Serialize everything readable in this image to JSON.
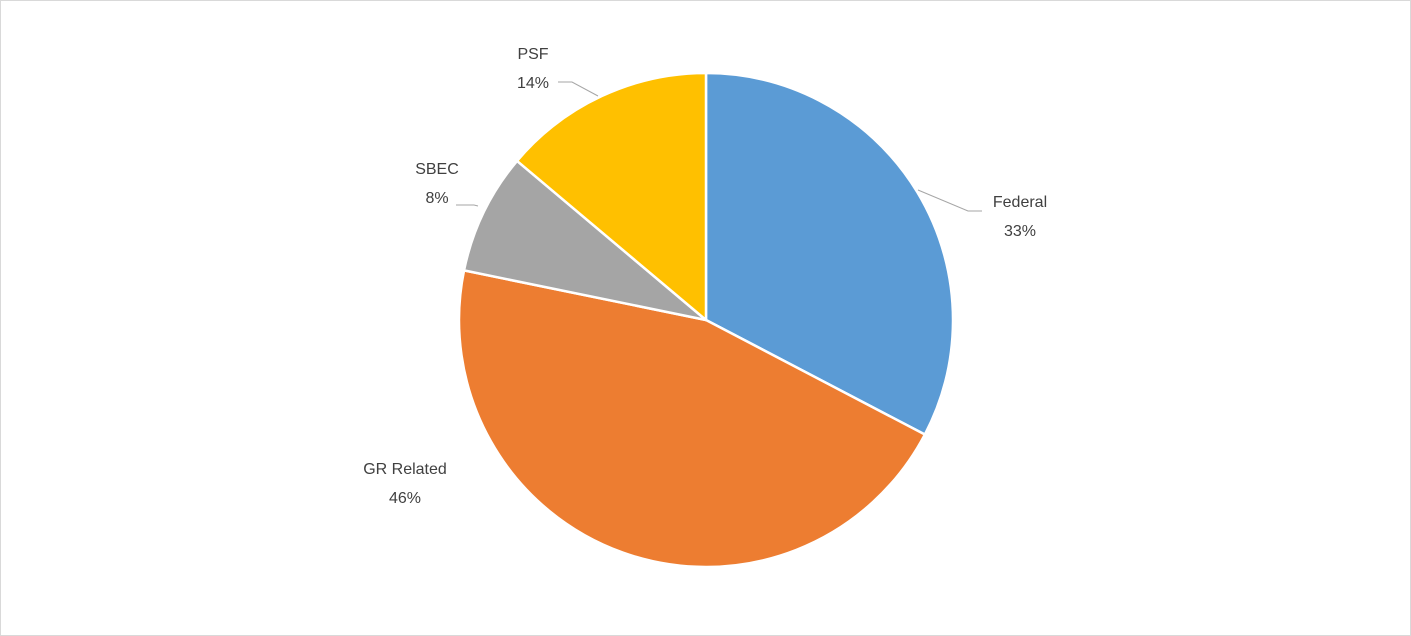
{
  "chart_data": {
    "type": "pie",
    "categories": [
      "Federal",
      "GR Related",
      "SBEC",
      "PSF"
    ],
    "values": [
      33,
      46,
      8,
      14
    ],
    "value_labels": [
      "33%",
      "46%",
      "8%",
      "14%"
    ],
    "colors": [
      "#5b9bd5",
      "#ed7d31",
      "#a5a5a5",
      "#ffc000"
    ]
  }
}
